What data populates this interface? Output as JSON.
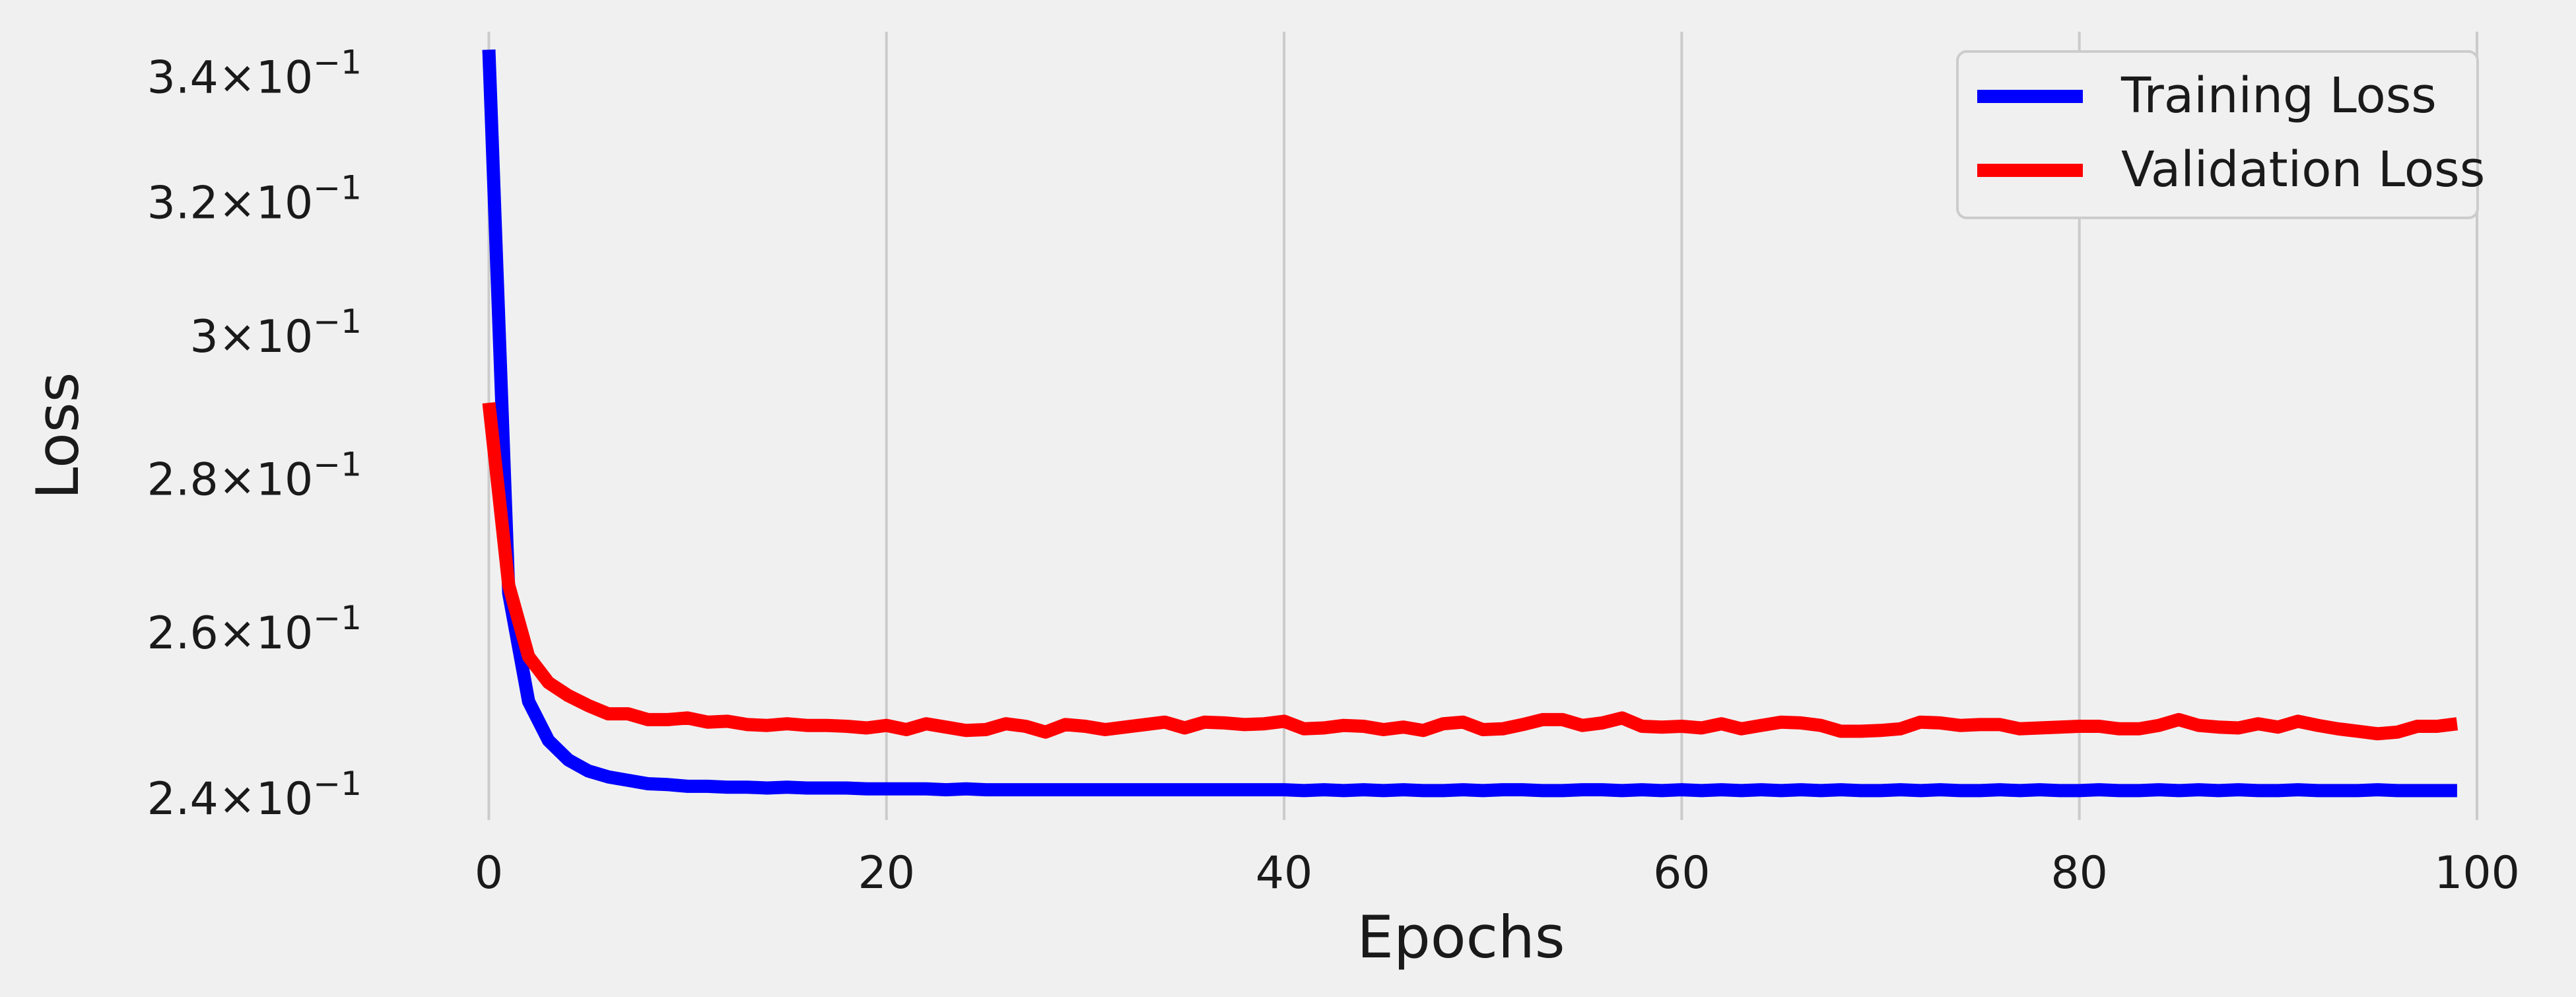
{
  "chart_data": {
    "type": "line",
    "xlabel": "Epochs",
    "ylabel": "Loss",
    "y_scale": "log",
    "xlim": [
      -4,
      100
    ],
    "ylim": [
      0.2375,
      0.3475
    ],
    "x_ticks": [
      0,
      20,
      40,
      60,
      80,
      100
    ],
    "y_ticks": [
      {
        "value": 0.24,
        "mantissa": "2.4",
        "base": "10",
        "exp": "−1"
      },
      {
        "value": 0.26,
        "mantissa": "2.6",
        "base": "10",
        "exp": "−1"
      },
      {
        "value": 0.28,
        "mantissa": "2.8",
        "base": "10",
        "exp": "−1"
      },
      {
        "value": 0.3,
        "mantissa": "3",
        "base": "10",
        "exp": "−1"
      },
      {
        "value": 0.32,
        "mantissa": "3.2",
        "base": "10",
        "exp": "−1"
      },
      {
        "value": 0.34,
        "mantissa": "3.4",
        "base": "10",
        "exp": "−1"
      }
    ],
    "grid": "vertical",
    "legend_position": "top-right",
    "x": [
      0,
      1,
      2,
      3,
      4,
      5,
      6,
      7,
      8,
      9,
      10,
      11,
      12,
      13,
      14,
      15,
      16,
      17,
      18,
      19,
      20,
      21,
      22,
      23,
      24,
      25,
      26,
      27,
      28,
      29,
      30,
      31,
      32,
      33,
      34,
      35,
      36,
      37,
      38,
      39,
      40,
      41,
      42,
      43,
      44,
      45,
      46,
      47,
      48,
      49,
      50,
      51,
      52,
      53,
      54,
      55,
      56,
      57,
      58,
      59,
      60,
      61,
      62,
      63,
      64,
      65,
      66,
      67,
      68,
      69,
      70,
      71,
      72,
      73,
      74,
      75,
      76,
      77,
      78,
      79,
      80,
      81,
      82,
      83,
      84,
      85,
      86,
      87,
      88,
      89,
      90,
      91,
      92,
      93,
      94,
      95,
      96,
      97,
      98,
      99
    ],
    "series": [
      {
        "name": "Training Loss",
        "color": "#0000ff",
        "values": [
          0.3445,
          0.265,
          0.2515,
          0.2468,
          0.2445,
          0.2432,
          0.2425,
          0.2421,
          0.2417,
          0.2416,
          0.2414,
          0.2414,
          0.2413,
          0.2413,
          0.2412,
          0.2413,
          0.2412,
          0.2412,
          0.2412,
          0.2411,
          0.2411,
          0.2411,
          0.2411,
          0.241,
          0.2411,
          0.241,
          0.241,
          0.241,
          0.241,
          0.241,
          0.241,
          0.241,
          0.241,
          0.241,
          0.241,
          0.241,
          0.241,
          0.241,
          0.241,
          0.241,
          0.241,
          0.2409,
          0.241,
          0.2409,
          0.241,
          0.2409,
          0.241,
          0.2409,
          0.2409,
          0.241,
          0.2409,
          0.241,
          0.241,
          0.2409,
          0.2409,
          0.241,
          0.241,
          0.2409,
          0.241,
          0.2409,
          0.241,
          0.2409,
          0.241,
          0.2409,
          0.241,
          0.2409,
          0.241,
          0.2409,
          0.241,
          0.2409,
          0.2409,
          0.241,
          0.2409,
          0.241,
          0.2409,
          0.2409,
          0.241,
          0.2409,
          0.241,
          0.2409,
          0.2409,
          0.241,
          0.2409,
          0.2409,
          0.241,
          0.2409,
          0.241,
          0.2409,
          0.241,
          0.2409,
          0.2409,
          0.241,
          0.2409,
          0.2409,
          0.2409,
          0.241,
          0.2409,
          0.2409,
          0.2409,
          0.2409
        ]
      },
      {
        "name": "Validation Loss",
        "color": "#ff0000",
        "values": [
          0.2905,
          0.266,
          0.257,
          0.2538,
          0.2522,
          0.251,
          0.25,
          0.25,
          0.2493,
          0.2493,
          0.2495,
          0.249,
          0.2491,
          0.2487,
          0.2486,
          0.2488,
          0.2486,
          0.2486,
          0.2485,
          0.2483,
          0.2486,
          0.2481,
          0.2488,
          0.2484,
          0.248,
          0.2481,
          0.2488,
          0.2485,
          0.2478,
          0.2487,
          0.2485,
          0.2481,
          0.2484,
          0.2487,
          0.249,
          0.2483,
          0.249,
          0.2489,
          0.2487,
          0.2488,
          0.2491,
          0.2482,
          0.2483,
          0.2486,
          0.2485,
          0.2481,
          0.2484,
          0.248,
          0.2488,
          0.249,
          0.2481,
          0.2482,
          0.2487,
          0.2493,
          0.2493,
          0.2486,
          0.2489,
          0.2495,
          0.2485,
          0.2484,
          0.2485,
          0.2483,
          0.2488,
          0.2482,
          0.2486,
          0.249,
          0.2489,
          0.2486,
          0.2479,
          0.2479,
          0.248,
          0.2482,
          0.249,
          0.2489,
          0.2486,
          0.2487,
          0.2487,
          0.2482,
          0.2483,
          0.2484,
          0.2485,
          0.2485,
          0.2482,
          0.2482,
          0.2486,
          0.2493,
          0.2486,
          0.2484,
          0.2483,
          0.2488,
          0.2484,
          0.2491,
          0.2486,
          0.2482,
          0.2479,
          0.2476,
          0.2478,
          0.2485,
          0.2485,
          0.2488
        ]
      }
    ]
  }
}
